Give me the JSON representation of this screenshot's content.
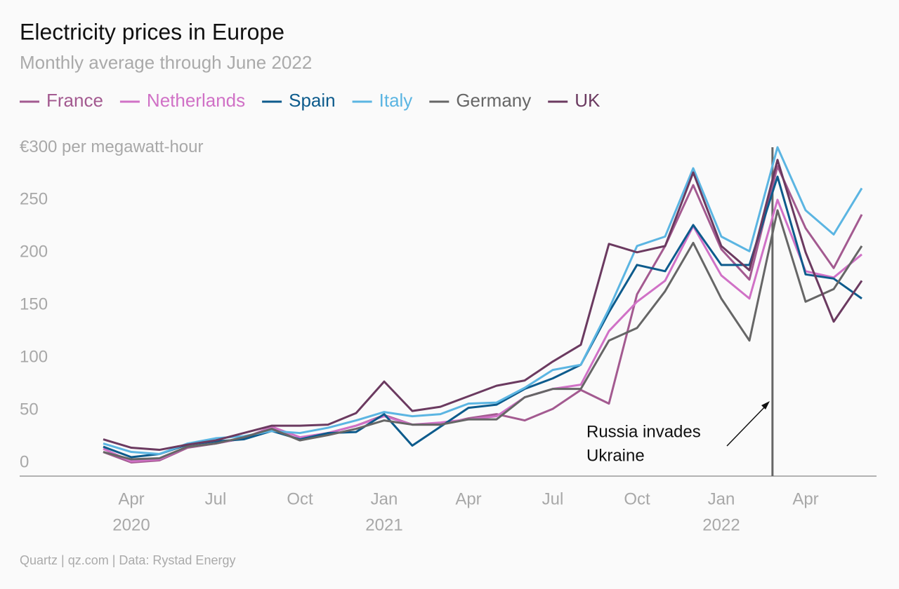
{
  "chart_data": {
    "type": "line",
    "title": "Electricity prices in Europe",
    "subtitle": "Monthly average through June 2022",
    "source": "Quartz | qz.com | Data: Rystad Energy",
    "x": [
      "2020-03",
      "2020-04",
      "2020-05",
      "2020-06",
      "2020-07",
      "2020-08",
      "2020-09",
      "2020-10",
      "2020-11",
      "2020-12",
      "2021-01",
      "2021-02",
      "2021-03",
      "2021-04",
      "2021-05",
      "2021-06",
      "2021-07",
      "2021-08",
      "2021-09",
      "2021-10",
      "2021-11",
      "2021-12",
      "2022-01",
      "2022-02",
      "2022-03",
      "2022-04",
      "2022-05",
      "2022-06"
    ],
    "series": [
      {
        "name": "France",
        "color": "#a35a90",
        "values": [
          23,
          13,
          15,
          27,
          31,
          36,
          46,
          34,
          41,
          48,
          58,
          49,
          49,
          55,
          59,
          53,
          64,
          82,
          69,
          173,
          219,
          277,
          216,
          187,
          295,
          236,
          198,
          249
        ]
      },
      {
        "name": "Netherlands",
        "color": "#d071c6",
        "values": [
          26,
          14,
          16,
          28,
          31,
          36,
          47,
          37,
          41,
          48,
          57,
          49,
          51,
          54,
          57,
          75,
          83,
          87,
          138,
          166,
          186,
          238,
          191,
          169,
          263,
          195,
          189,
          211
        ]
      },
      {
        "name": "Spain",
        "color": "#0d5b8c",
        "values": [
          28,
          18,
          21,
          30,
          33,
          35,
          43,
          35,
          41,
          42,
          59,
          29,
          47,
          65,
          68,
          83,
          93,
          106,
          156,
          201,
          195,
          239,
          201,
          201,
          285,
          192,
          188,
          169
        ]
      },
      {
        "name": "Italy",
        "color": "#5bb5e2",
        "values": [
          31,
          23,
          21,
          31,
          36,
          38,
          43,
          41,
          46,
          53,
          61,
          57,
          59,
          69,
          70,
          84,
          101,
          106,
          159,
          219,
          228,
          293,
          228,
          214,
          313,
          253,
          230,
          274
        ]
      },
      {
        "name": "Germany",
        "color": "#666666",
        "values": [
          23,
          16,
          17,
          28,
          31,
          37,
          45,
          34,
          39,
          45,
          53,
          49,
          49,
          54,
          54,
          75,
          83,
          83,
          129,
          141,
          176,
          222,
          169,
          129,
          253,
          166,
          178,
          219
        ]
      },
      {
        "name": "UK",
        "color": "#6b3a60",
        "values": [
          35,
          27,
          25,
          30,
          34,
          41,
          48,
          48,
          49,
          60,
          90,
          62,
          66,
          76,
          86,
          91,
          109,
          125,
          221,
          213,
          219,
          289,
          219,
          196,
          301,
          213,
          147,
          186
        ]
      }
    ],
    "ylim": [
      0,
      313
    ],
    "yticks": [
      0,
      50,
      100,
      150,
      200,
      250,
      {
        "value": 300,
        "label": "€300 per megawatt-hour"
      }
    ],
    "xticks": [
      {
        "value": "2020-04",
        "label": "Apr"
      },
      {
        "value": "2020-07",
        "label": "Jul"
      },
      {
        "value": "2020-10",
        "label": "Oct"
      },
      {
        "value": "2021-01",
        "label": "Jan"
      },
      {
        "value": "2021-04",
        "label": "Apr"
      },
      {
        "value": "2021-07",
        "label": "Jul"
      },
      {
        "value": "2021-10",
        "label": "Oct"
      },
      {
        "value": "2022-01",
        "label": "Jan"
      },
      {
        "value": "2022-04",
        "label": "Apr"
      }
    ],
    "xtick_years": [
      {
        "value": "2020-04",
        "label": "2020"
      },
      {
        "value": "2021-01",
        "label": "2021"
      },
      {
        "value": "2022-01",
        "label": "2022"
      }
    ],
    "annotation": {
      "text": [
        "Russia invades",
        "Ukraine"
      ],
      "x": "2022-02-24"
    }
  }
}
